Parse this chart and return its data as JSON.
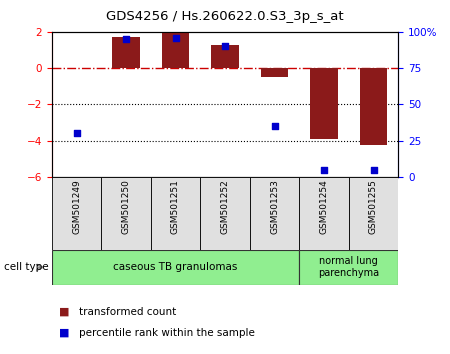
{
  "title": "GDS4256 / Hs.260622.0.S3_3p_s_at",
  "samples": [
    "GSM501249",
    "GSM501250",
    "GSM501251",
    "GSM501252",
    "GSM501253",
    "GSM501254",
    "GSM501255"
  ],
  "transformed_count": [
    0.0,
    1.72,
    1.92,
    1.28,
    -0.48,
    -3.88,
    -4.22
  ],
  "percentile_rank": [
    30,
    95,
    96,
    90,
    35,
    5,
    5
  ],
  "ylim_left": [
    -6,
    2
  ],
  "ylim_right": [
    0,
    100
  ],
  "yticks_left": [
    -6,
    -4,
    -2,
    0,
    2
  ],
  "yticks_right": [
    0,
    25,
    50,
    75,
    100
  ],
  "yticklabels_right": [
    "0",
    "25",
    "50",
    "75",
    "100%"
  ],
  "bar_color": "#8B1A1A",
  "dot_color": "#0000CC",
  "zero_line_color": "#CC0000",
  "group1_label": "caseous TB granulomas",
  "group2_label": "normal lung\nparenchyma",
  "group1_bg": "#90EE90",
  "group2_bg": "#90EE90",
  "cell_type_label": "cell type",
  "legend1": "transformed count",
  "legend2": "percentile rank within the sample",
  "bar_width": 0.55
}
